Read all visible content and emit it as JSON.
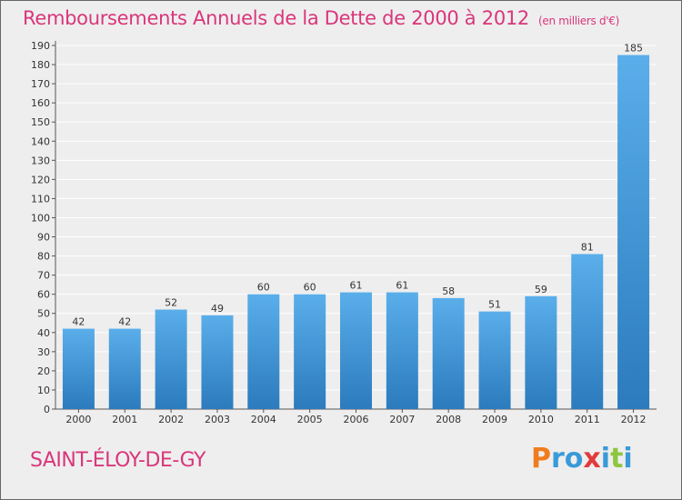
{
  "page": {
    "title": "Remboursements Annuels de la Dette de 2000 à 2012",
    "unit": "(en milliers d'€)",
    "commune": "SAINT-ÉLOY-DE-GY",
    "logo_text": "Proxiti"
  },
  "colors": {
    "title": "#d9367b",
    "bar_top": "#5aaeea",
    "bar_bottom": "#2b7bbd",
    "grid": "#ffffff",
    "background": "#eeeeee",
    "logo": [
      "#ef7d1f",
      "#3a9ad9",
      "#3a9ad9",
      "#e23b3b",
      "#3a9ad9",
      "#8dc63f",
      "#3a9ad9"
    ]
  },
  "chart_data": {
    "type": "bar",
    "title": "Remboursements Annuels de la Dette de 2000 à 2012",
    "subtitle": "(en milliers d'€)",
    "xlabel": "",
    "ylabel": "",
    "categories": [
      "2000",
      "2001",
      "2002",
      "2003",
      "2004",
      "2005",
      "2006",
      "2007",
      "2008",
      "2009",
      "2010",
      "2011",
      "2012"
    ],
    "values": [
      42,
      42,
      52,
      49,
      60,
      60,
      61,
      61,
      58,
      51,
      59,
      81,
      185
    ],
    "ylim": [
      0,
      190
    ],
    "yticks": [
      0,
      10,
      20,
      30,
      40,
      50,
      60,
      70,
      80,
      90,
      100,
      110,
      120,
      130,
      140,
      150,
      160,
      170,
      180,
      190
    ],
    "grid": true,
    "data_labels": true,
    "legend": "none"
  }
}
